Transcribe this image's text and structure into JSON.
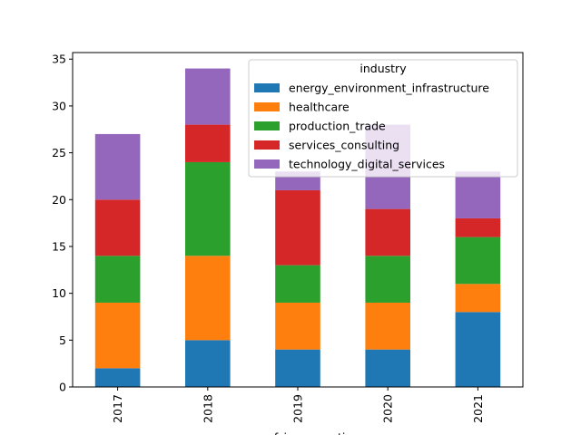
{
  "chart_data": {
    "type": "bar",
    "stacked": true,
    "categories": [
      "2017",
      "2018",
      "2019",
      "2020",
      "2021"
    ],
    "series": [
      {
        "name": "energy_environment_infrastructure",
        "values": [
          2,
          5,
          4,
          4,
          8
        ],
        "color": "#1f77b4"
      },
      {
        "name": "healthcare",
        "values": [
          7,
          9,
          5,
          5,
          3
        ],
        "color": "#ff7f0e"
      },
      {
        "name": "production_trade",
        "values": [
          5,
          10,
          4,
          5,
          5
        ],
        "color": "#2ca02c"
      },
      {
        "name": "services_consulting",
        "values": [
          6,
          4,
          8,
          5,
          2
        ],
        "color": "#d62728"
      },
      {
        "name": "technology_digital_services",
        "values": [
          7,
          6,
          2,
          9,
          5
        ],
        "color": "#9467bd"
      }
    ],
    "title": "",
    "xlabel": "year_of_incorporation",
    "ylabel": "",
    "ylim": [
      0,
      35.7
    ],
    "yticks": [
      0,
      5,
      10,
      15,
      20,
      25,
      30,
      35
    ],
    "legend": {
      "title": "industry",
      "position": "top-right"
    },
    "grid": false
  }
}
